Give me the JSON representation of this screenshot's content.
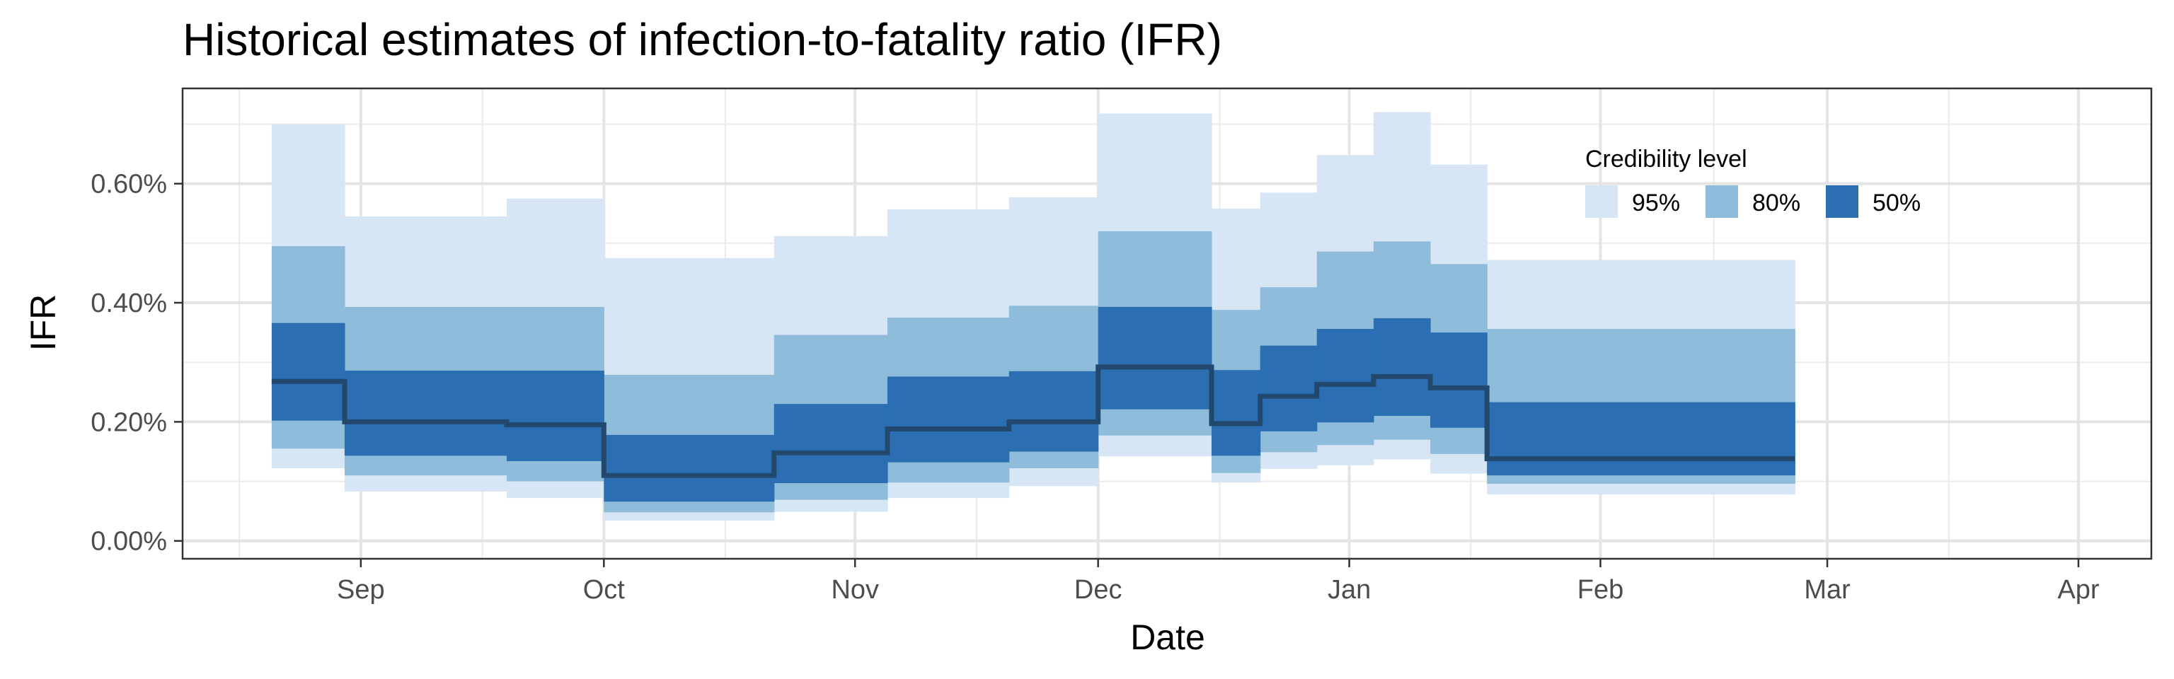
{
  "chart_data": {
    "type": "area",
    "title": "Historical estimates of infection-to-fatality ratio (IFR)",
    "xlabel": "Date",
    "ylabel": "IFR",
    "x_range": [
      "2020-08-10",
      "2021-04-10"
    ],
    "ylim": [
      -0.0003,
      0.0076
    ],
    "y_ticks": [
      0,
      0.002,
      0.004,
      0.006
    ],
    "y_tick_labels": [
      "0.00%",
      "0.20%",
      "0.40%",
      "0.60%"
    ],
    "x_ticks": [
      "2020-09-01",
      "2020-10-01",
      "2020-11-01",
      "2020-12-01",
      "2021-01-01",
      "2021-02-01",
      "2021-03-01",
      "2021-04-01"
    ],
    "x_tick_labels": [
      "Sep",
      "Oct",
      "Nov",
      "Dec",
      "Jan",
      "Feb",
      "Mar",
      "Apr"
    ],
    "x_minor_ticks": [
      "2020-08-17",
      "2020-09-16",
      "2020-10-16",
      "2020-11-16",
      "2020-12-16",
      "2021-01-16",
      "2021-02-15",
      "2021-03-16"
    ],
    "grid": true,
    "legend": {
      "title": "Credibility level",
      "position": "top-right",
      "entries": [
        {
          "label": "95%",
          "color": "#d6e6f4"
        },
        {
          "label": "80%",
          "color": "#8fbcda"
        },
        {
          "label": "50%",
          "color": "#2b6fb2"
        }
      ]
    },
    "median_color": "#23486d",
    "estimates": [
      {
        "start": "2020-08-21",
        "end": "2020-08-29",
        "median": 0.00268,
        "lo50": 0.00202,
        "hi50": 0.00366,
        "lo80": 0.00155,
        "hi80": 0.00495,
        "lo95": 0.00122,
        "hi95": 0.007
      },
      {
        "start": "2020-08-30",
        "end": "2020-09-18",
        "median": 0.002,
        "lo50": 0.00143,
        "hi50": 0.00286,
        "lo80": 0.0011,
        "hi80": 0.00393,
        "lo95": 0.00083,
        "hi95": 0.00545
      },
      {
        "start": "2020-09-19",
        "end": "2020-09-30",
        "median": 0.00195,
        "lo50": 0.00134,
        "hi50": 0.00286,
        "lo80": 0.001,
        "hi80": 0.00393,
        "lo95": 0.00072,
        "hi95": 0.00575
      },
      {
        "start": "2020-10-01",
        "end": "2020-10-21",
        "median": 0.0011,
        "lo50": 0.00066,
        "hi50": 0.00178,
        "lo80": 0.00048,
        "hi80": 0.00279,
        "lo95": 0.00034,
        "hi95": 0.00475
      },
      {
        "start": "2020-10-22",
        "end": "2020-11-04",
        "median": 0.00148,
        "lo50": 0.00097,
        "hi50": 0.0023,
        "lo80": 0.00069,
        "hi80": 0.00346,
        "lo95": 0.00049,
        "hi95": 0.00512
      },
      {
        "start": "2020-11-05",
        "end": "2020-11-19",
        "median": 0.00188,
        "lo50": 0.00132,
        "hi50": 0.00276,
        "lo80": 0.00098,
        "hi80": 0.00375,
        "lo95": 0.00072,
        "hi95": 0.00557
      },
      {
        "start": "2020-11-20",
        "end": "2020-11-30",
        "median": 0.002,
        "lo50": 0.0015,
        "hi50": 0.00285,
        "lo80": 0.00122,
        "hi80": 0.00395,
        "lo95": 0.00092,
        "hi95": 0.00577
      },
      {
        "start": "2020-12-01",
        "end": "2020-12-14",
        "median": 0.00292,
        "lo50": 0.00221,
        "hi50": 0.00393,
        "lo80": 0.00177,
        "hi80": 0.0052,
        "lo95": 0.00142,
        "hi95": 0.00718
      },
      {
        "start": "2020-12-15",
        "end": "2020-12-20",
        "median": 0.00197,
        "lo50": 0.00143,
        "hi50": 0.00287,
        "lo80": 0.00114,
        "hi80": 0.00388,
        "lo95": 0.00098,
        "hi95": 0.00558
      },
      {
        "start": "2020-12-21",
        "end": "2020-12-27",
        "median": 0.00243,
        "lo50": 0.00184,
        "hi50": 0.00328,
        "lo80": 0.00149,
        "hi80": 0.00426,
        "lo95": 0.00121,
        "hi95": 0.00585
      },
      {
        "start": "2020-12-28",
        "end": "2021-01-03",
        "median": 0.00263,
        "lo50": 0.00199,
        "hi50": 0.00356,
        "lo80": 0.00161,
        "hi80": 0.00486,
        "lo95": 0.00127,
        "hi95": 0.00648
      },
      {
        "start": "2021-01-04",
        "end": "2021-01-10",
        "median": 0.00276,
        "lo50": 0.0021,
        "hi50": 0.00374,
        "lo80": 0.0017,
        "hi80": 0.00503,
        "lo95": 0.00137,
        "hi95": 0.0072
      },
      {
        "start": "2021-01-11",
        "end": "2021-01-17",
        "median": 0.00257,
        "lo50": 0.0019,
        "hi50": 0.0035,
        "lo80": 0.00146,
        "hi80": 0.00465,
        "lo95": 0.00113,
        "hi95": 0.00632
      },
      {
        "start": "2021-01-18",
        "end": "2021-02-24",
        "median": 0.00138,
        "lo50": 0.0011,
        "hi50": 0.00233,
        "lo80": 0.00096,
        "hi80": 0.00356,
        "lo95": 0.00078,
        "hi95": 0.00472
      }
    ]
  }
}
